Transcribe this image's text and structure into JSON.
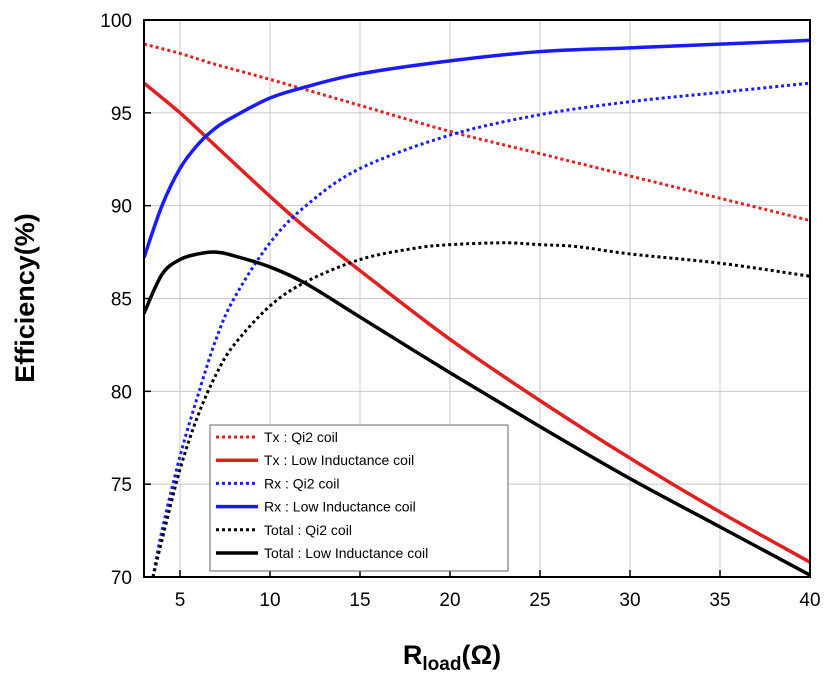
{
  "chart_data": {
    "type": "line",
    "xlabel_main": "R",
    "xlabel_sub": "load",
    "xlabel_unit": "(Ω)",
    "ylabel": "Efficiency(%)",
    "xlim": [
      3,
      40
    ],
    "ylim": [
      70,
      100
    ],
    "x_ticks": [
      5,
      10,
      15,
      20,
      25,
      30,
      35,
      40
    ],
    "y_ticks": [
      70,
      75,
      80,
      85,
      90,
      95,
      100
    ],
    "grid": true,
    "legend_position": "bottom-left",
    "series": [
      {
        "name": "Tx : Qi2 coil",
        "color": "#e02020",
        "style": "dotted",
        "x": [
          3,
          5,
          7,
          10,
          15,
          20,
          25,
          30,
          35,
          40
        ],
        "y": [
          98.7,
          98.2,
          97.6,
          96.8,
          95.4,
          94.0,
          92.8,
          91.6,
          90.4,
          89.2
        ]
      },
      {
        "name": "Tx : Low Inductance coil",
        "color": "#e02020",
        "style": "solid",
        "x": [
          3,
          5,
          7,
          10,
          12,
          15,
          20,
          25,
          30,
          35,
          40
        ],
        "y": [
          96.6,
          95.0,
          93.2,
          90.5,
          88.8,
          86.5,
          82.8,
          79.5,
          76.4,
          73.5,
          70.8
        ]
      },
      {
        "name": "Rx : Qi2 coil",
        "color": "#1a1aff",
        "style": "dotted",
        "x": [
          3.5,
          4,
          5,
          6,
          7,
          8,
          10,
          12,
          15,
          20,
          25,
          30,
          35,
          40
        ],
        "y": [
          70.0,
          72.5,
          76.5,
          79.8,
          82.8,
          85.0,
          88.0,
          90.0,
          92.0,
          93.8,
          94.9,
          95.6,
          96.1,
          96.6
        ]
      },
      {
        "name": "Rx : Low Inductance coil",
        "color": "#1a1aff",
        "style": "solid",
        "x": [
          3,
          4,
          5,
          6,
          7,
          8,
          10,
          12,
          15,
          20,
          25,
          30,
          35,
          40
        ],
        "y": [
          87.2,
          90.0,
          92.0,
          93.3,
          94.2,
          94.8,
          95.8,
          96.4,
          97.1,
          97.8,
          98.3,
          98.5,
          98.7,
          98.9
        ]
      },
      {
        "name": "Total : Qi2 coil",
        "color": "#000000",
        "style": "dotted",
        "x": [
          3.5,
          4,
          5,
          6,
          7,
          8,
          10,
          12,
          15,
          18,
          20,
          23,
          25,
          27,
          30,
          35,
          40
        ],
        "y": [
          70.0,
          72.0,
          75.8,
          78.7,
          80.9,
          82.5,
          84.6,
          85.9,
          87.1,
          87.7,
          87.9,
          88.0,
          87.9,
          87.8,
          87.4,
          86.9,
          86.2
        ]
      },
      {
        "name": "Total : Low Inductance coil",
        "color": "#000000",
        "style": "solid",
        "x": [
          3,
          4,
          5,
          6,
          7,
          8,
          10,
          12,
          15,
          20,
          25,
          30,
          35,
          40
        ],
        "y": [
          84.2,
          86.3,
          87.1,
          87.4,
          87.5,
          87.3,
          86.7,
          85.8,
          84.0,
          81.0,
          78.1,
          75.3,
          72.7,
          70.1
        ]
      }
    ]
  }
}
